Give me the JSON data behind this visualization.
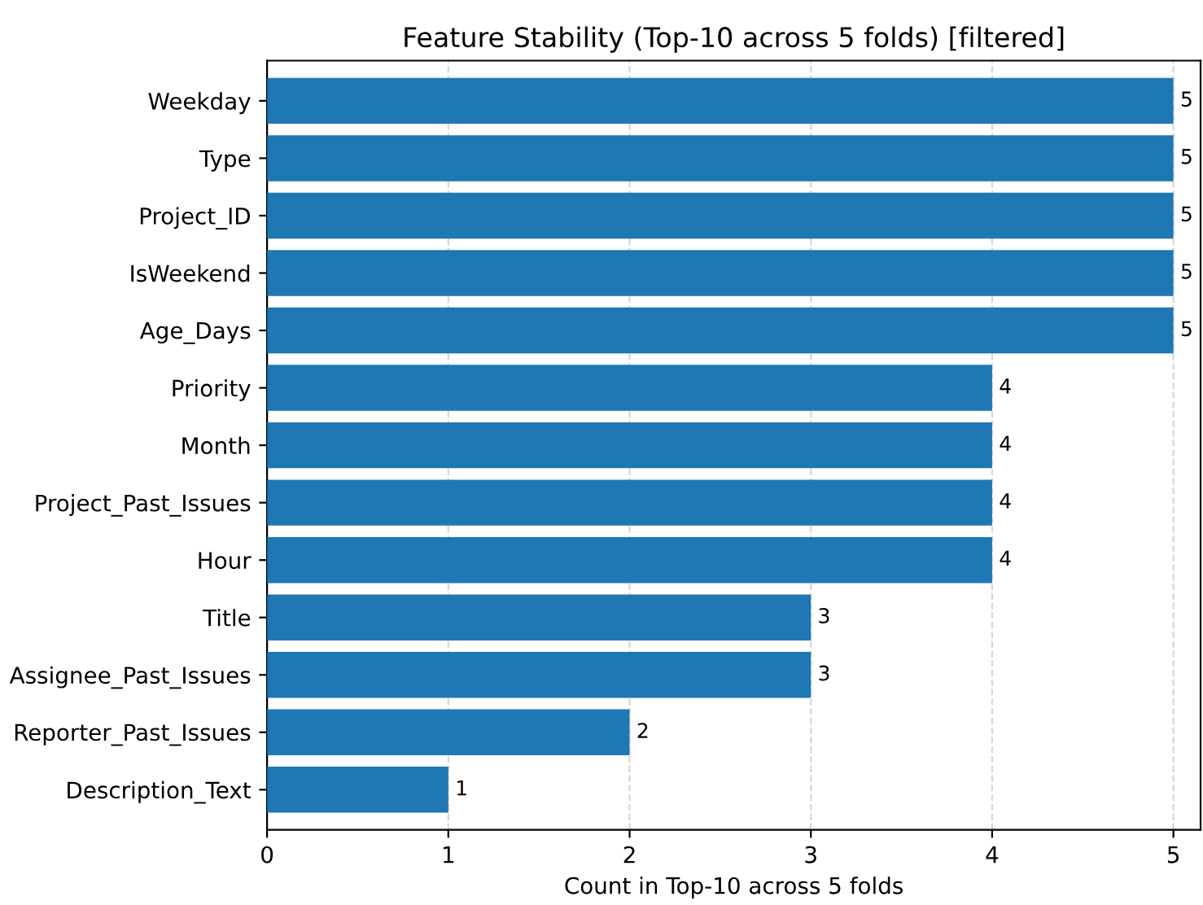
{
  "chart_data": {
    "type": "bar",
    "orientation": "horizontal",
    "title": "Feature Stability (Top-10 across 5 folds) [filtered]",
    "xlabel": "Count in Top-10 across 5 folds",
    "categories": [
      "Weekday",
      "Type",
      "Project_ID",
      "IsWeekend",
      "Age_Days",
      "Priority",
      "Month",
      "Project_Past_Issues",
      "Hour",
      "Title",
      "Assignee_Past_Issues",
      "Reporter_Past_Issues",
      "Description_Text"
    ],
    "values": [
      5,
      5,
      5,
      5,
      5,
      4,
      4,
      4,
      4,
      3,
      3,
      2,
      1
    ],
    "color": "#1f77b4",
    "xlim": [
      0,
      5.15
    ],
    "xticks": [
      0,
      1,
      2,
      3,
      4,
      5
    ],
    "grid": "x",
    "data_labels": true
  }
}
